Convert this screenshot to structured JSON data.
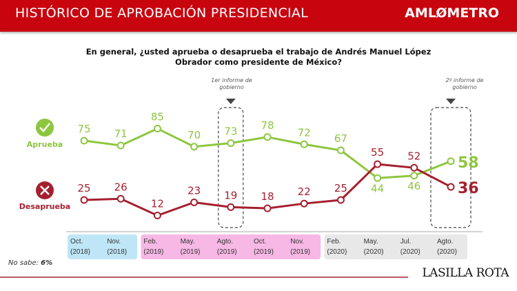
{
  "header": {
    "title": "HISTÓRICO DE APROBACIÓN PRESIDENCIAL",
    "logo": "AMLØMETRO"
  },
  "chart_data": {
    "type": "line",
    "title": "En general, ¿usted aprueba o desaprueba el trabajo de Andrés Manuel López Obrador como presidente de México?",
    "categories": [
      [
        "Oct.",
        "(2018)"
      ],
      [
        "Nov.",
        "(2018)"
      ],
      [
        "Feb.",
        "(2019)"
      ],
      [
        "May.",
        "(2019)"
      ],
      [
        "Agto.",
        "(2019)"
      ],
      [
        "Oct.",
        "(2019)"
      ],
      [
        "Nov.",
        "(2019)"
      ],
      [
        "Feb.",
        "(2020)"
      ],
      [
        "May.",
        "(2020)"
      ],
      [
        "Jul.",
        "(2020)"
      ],
      [
        "Agto.",
        "(2020)"
      ]
    ],
    "category_groups": [
      {
        "year": "2018",
        "color": "#bfe6f7",
        "from": 0,
        "to": 1
      },
      {
        "year": "2019",
        "color": "#f7b8e6",
        "from": 2,
        "to": 6
      },
      {
        "year": "2020",
        "color": "#e8e8e8",
        "from": 7,
        "to": 10
      }
    ],
    "series": [
      {
        "name": "Aprueba",
        "color": "#8dc63f",
        "icon": "check-icon",
        "values": [
          75,
          71,
          85,
          70,
          73,
          78,
          72,
          67,
          44,
          46,
          58
        ]
      },
      {
        "name": "Desaprueba",
        "color": "#a5202f",
        "icon": "x-icon",
        "values": [
          25,
          26,
          12,
          23,
          19,
          18,
          22,
          25,
          55,
          52,
          36
        ]
      }
    ],
    "annotations": [
      {
        "text": "1er informe de gobierno",
        "index": 4
      },
      {
        "text": "2º informe de gobierno",
        "index": 10
      }
    ],
    "grid": false
  },
  "footer": {
    "no_sabe_label": "No sabe:",
    "no_sabe_value": "6%",
    "source": "LASILLA ROTA"
  }
}
